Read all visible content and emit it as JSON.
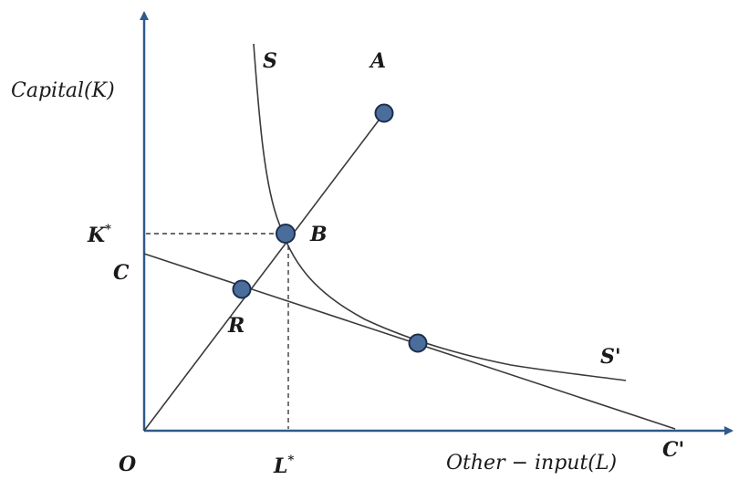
{
  "axes": {
    "y_label": "Capital(K)",
    "x_label": "Other − input(L)",
    "origin_label": "O"
  },
  "curve_labels": {
    "isoquant_top": "S",
    "isoquant_end": "S'",
    "isocost_start": "C",
    "isocost_end": "C'"
  },
  "point_labels": {
    "a": "A",
    "b": "B",
    "r": "R"
  },
  "reference": {
    "k_star_base": "K",
    "k_star_sup": "*",
    "l_star_base": "L",
    "l_star_sup": "*"
  },
  "colors": {
    "axis": "#2f5a8a",
    "point_fill": "#4a6d9c",
    "point_stroke": "#1c2f4d",
    "line": "#3a3a3a"
  }
}
